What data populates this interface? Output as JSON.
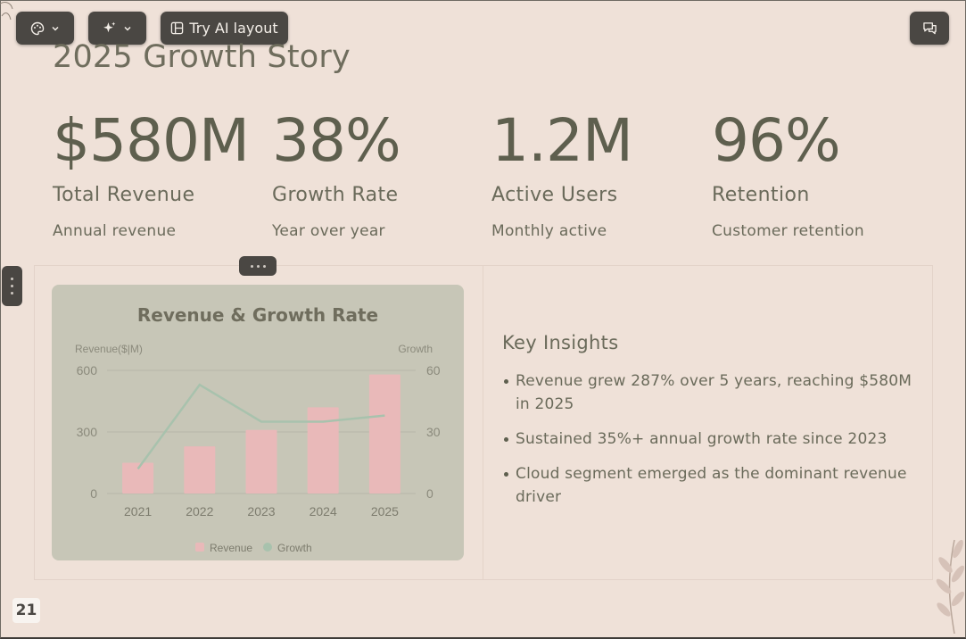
{
  "toolbar": {
    "theme_icon": "palette-icon",
    "magic_icon": "sparkles-icon",
    "ai_layout_label": "Try AI layout",
    "ai_layout_icon": "layout-icon",
    "comment_icon": "comment-icon"
  },
  "slide": {
    "title": "2025 Growth Story",
    "stats": [
      {
        "value": "$580M",
        "label": "Total Revenue",
        "sub": "Annual revenue"
      },
      {
        "value": "38%",
        "label": "Growth Rate",
        "sub": "Year over year"
      },
      {
        "value": "1.2M",
        "label": "Active Users",
        "sub": "Monthly active"
      },
      {
        "value": "96%",
        "label": "Retention",
        "sub": "Customer retention"
      }
    ],
    "insights": {
      "heading": "Key Insights",
      "items": [
        "Revenue grew 287% over 5 years, reaching $580M in 2025",
        "Sustained 35%+ annual growth rate since 2023",
        "Cloud segment emerged as the dominant revenue driver"
      ]
    },
    "page_number": "21"
  },
  "colors": {
    "background": "#efe1d8",
    "chart_bg": "#c7c6b7",
    "bar": "#e9b9b9",
    "line": "#a8c2ad",
    "toolbar": "#4a4743"
  },
  "chart_data": {
    "type": "bar",
    "title": "Revenue & Growth Rate",
    "categories": [
      "2021",
      "2022",
      "2023",
      "2024",
      "2025"
    ],
    "ylabel": "Revenue($|M)",
    "y2label": "Growth",
    "ylim": [
      0,
      600
    ],
    "y2lim": [
      0,
      60
    ],
    "yticks": [
      "0",
      "300",
      "600"
    ],
    "y2ticks": [
      "0",
      "30",
      "60"
    ],
    "series": [
      {
        "name": "Revenue",
        "type": "bar",
        "axis": "left",
        "values": [
          150,
          230,
          310,
          420,
          580
        ]
      },
      {
        "name": "Growth",
        "type": "line",
        "axis": "right",
        "values": [
          12,
          53,
          35,
          35,
          38
        ]
      }
    ],
    "legend": "bottom",
    "grid": true
  }
}
